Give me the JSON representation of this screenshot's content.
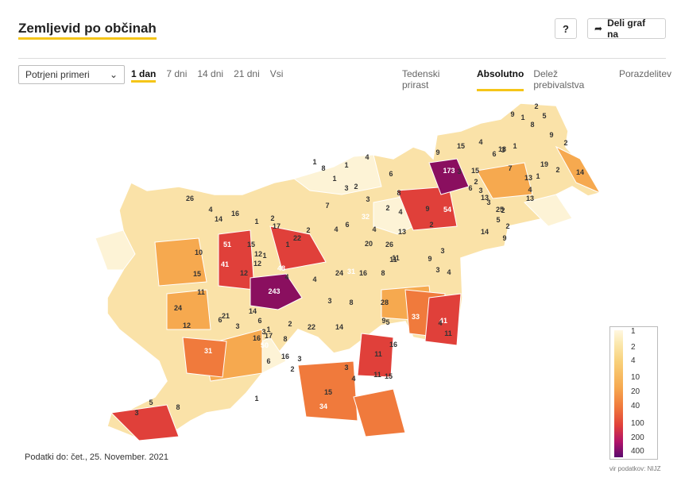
{
  "header": {
    "title": "Zemljevid po občinah",
    "help_label": "?",
    "share_label": "Deli graf na"
  },
  "controls": {
    "metric_select": "Potrjeni primeri",
    "periods": [
      "1 dan",
      "7 dni",
      "14 dni",
      "21 dni",
      "Vsi"
    ],
    "active_period": "1 dan",
    "views": [
      "Tedenski prirast",
      "Absolutno",
      "Delež prebivalstva",
      "Porazdelitev"
    ],
    "active_view": "Absolutno"
  },
  "map": {
    "labels": [
      "2",
      "9",
      "1",
      "8",
      "5",
      "9",
      "1",
      "2",
      "15",
      "4",
      "3",
      "18",
      "6",
      "19",
      "2",
      "14",
      "9",
      "173",
      "15",
      "3",
      "2",
      "13",
      "1",
      "7",
      "3",
      "6",
      "1",
      "1",
      "4",
      "3",
      "8",
      "1",
      "2",
      "6",
      "3",
      "2",
      "4",
      "3",
      "5",
      "4",
      "13",
      "13",
      "25",
      "2",
      "26",
      "4",
      "16",
      "7",
      "9",
      "8",
      "32",
      "14",
      "2",
      "9",
      "54",
      "2",
      "4",
      "13",
      "6",
      "4",
      "51",
      "1",
      "2",
      "22",
      "1",
      "17",
      "2",
      "14",
      "15",
      "10",
      "12",
      "1",
      "20",
      "26",
      "11",
      "9",
      "3",
      "41",
      "12",
      "48",
      "24",
      "31",
      "16",
      "8",
      "11",
      "3",
      "4",
      "12",
      "15",
      "11",
      "243",
      "4",
      "4",
      "3",
      "8",
      "28",
      "24",
      "12",
      "21",
      "6",
      "14",
      "6",
      "17",
      "22",
      "14",
      "9",
      "5",
      "33",
      "41",
      "11",
      "4",
      "16",
      "1",
      "16",
      "3",
      "31",
      "3",
      "2",
      "8",
      "50",
      "11",
      "3",
      "16",
      "6",
      "2",
      "37",
      "3",
      "11",
      "4",
      "15",
      "15",
      "34",
      "49",
      "1",
      "5",
      "8",
      "3"
    ],
    "legend": [
      "1",
      "2",
      "4",
      "10",
      "20",
      "40",
      "100",
      "200",
      "400"
    ],
    "colors": {
      "accent": "#f5c518",
      "low": "#fdf3d6",
      "mid": "#f6a94f",
      "high": "#e0403a",
      "max": "#6a0a5e"
    }
  },
  "footer": {
    "data_date": "Podatki do: čet., 25. November. 2021",
    "source": "vir podatkov: NIJZ"
  }
}
